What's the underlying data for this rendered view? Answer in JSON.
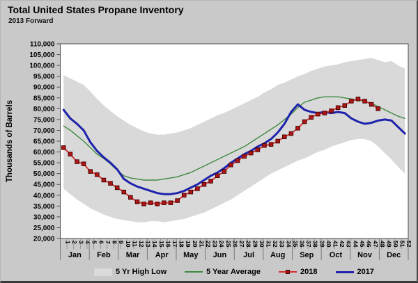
{
  "title": "Total United States Propane Inventory",
  "subtitle": "2013 Forward",
  "y_axis": {
    "label": "Thousands of Barrels",
    "min": 20000,
    "max": 110000,
    "step": 5000
  },
  "x_axis": {
    "week_min": 1,
    "week_max": 52,
    "months": [
      "Jan",
      "Feb",
      "Mar",
      "Apr",
      "May",
      "Jun",
      "Jul",
      "Aug",
      "Sep",
      "Oct",
      "Nov",
      "Dec"
    ]
  },
  "legend": [
    {
      "label": "5 Yr High Low",
      "type": "band",
      "color": "#dadada"
    },
    {
      "label": "5 Year Average",
      "type": "line",
      "color": "#3e8a40"
    },
    {
      "label": "2018",
      "type": "line-marker",
      "color": "#d92b2b",
      "marker_color": "#b01515"
    },
    {
      "label": "2017",
      "type": "line",
      "color": "#1e22aa"
    }
  ],
  "colors": {
    "background": "#c9c9c9",
    "plot_background": "#ffffff",
    "band_fill": "#d9d9d9",
    "avg_line": "#3e8a40",
    "line_2018": "#d92b2b",
    "marker_2018": "#b01515",
    "marker_edge_2018": "#400000",
    "line_2017": "#1e22aa",
    "axis": "#4d4d4d",
    "text": "#000000"
  },
  "chart_data": {
    "type": "line",
    "title": "Total United States Propane Inventory",
    "subtitle": "2013 Forward",
    "xlabel": "",
    "ylabel": "Thousands of Barrels",
    "ylim": [
      20000,
      110000
    ],
    "x": [
      1,
      2,
      3,
      4,
      5,
      6,
      7,
      8,
      9,
      10,
      11,
      12,
      13,
      14,
      15,
      16,
      17,
      18,
      19,
      20,
      21,
      22,
      23,
      24,
      25,
      26,
      27,
      28,
      29,
      30,
      31,
      32,
      33,
      34,
      35,
      36,
      37,
      38,
      39,
      40,
      41,
      42,
      43,
      44,
      45,
      46,
      47,
      48,
      49,
      50,
      51,
      52
    ],
    "series": [
      {
        "name": "5 Yr High (band top)",
        "values": [
          95500,
          94000,
          92500,
          91000,
          88000,
          84500,
          81500,
          79000,
          76500,
          74500,
          72500,
          71000,
          69500,
          68500,
          68000,
          68000,
          68500,
          69000,
          70000,
          71000,
          72500,
          74000,
          75500,
          77000,
          78000,
          79500,
          81000,
          82500,
          84000,
          85500,
          87500,
          89000,
          91000,
          92000,
          93500,
          95000,
          96000,
          97500,
          98500,
          99500,
          100000,
          100500,
          101500,
          102000,
          102500,
          103000,
          103500,
          102500,
          101500,
          102000,
          100000,
          98500
        ]
      },
      {
        "name": "5 Yr Low (band bottom)",
        "values": [
          43000,
          40500,
          38000,
          36000,
          34000,
          32500,
          31000,
          30000,
          29000,
          28500,
          28000,
          27500,
          27500,
          28000,
          28000,
          27500,
          28000,
          28500,
          29000,
          30000,
          31000,
          32000,
          33500,
          35000,
          36500,
          38000,
          40000,
          42000,
          44000,
          46000,
          48000,
          50000,
          51500,
          53000,
          54500,
          56000,
          57000,
          58500,
          60000,
          61000,
          62500,
          63500,
          64500,
          65500,
          66000,
          66000,
          65000,
          62500,
          59500,
          56500,
          53000,
          50000
        ]
      },
      {
        "name": "5 Year Average",
        "values": [
          72000,
          70000,
          67500,
          65000,
          62000,
          59000,
          57000,
          54500,
          51500,
          49000,
          48000,
          47500,
          47000,
          47000,
          47000,
          47500,
          48000,
          48500,
          49500,
          50500,
          52000,
          53500,
          55000,
          56500,
          58000,
          59500,
          61000,
          62500,
          64500,
          66500,
          68500,
          70500,
          72500,
          75000,
          77500,
          80500,
          83000,
          84000,
          85000,
          85500,
          85500,
          85500,
          85000,
          84500,
          84000,
          83500,
          82500,
          81000,
          79500,
          78000,
          76500,
          75500
        ]
      },
      {
        "name": "2018",
        "values": [
          62000,
          59000,
          55500,
          54500,
          51000,
          49500,
          47000,
          45500,
          43500,
          41500,
          39000,
          37000,
          36000,
          36500,
          36000,
          36500,
          36500,
          37500,
          40000,
          41500,
          43000,
          45000,
          46500,
          49000,
          51000,
          54000,
          56000,
          58000,
          59500,
          61000,
          63000,
          63500,
          65000,
          67000,
          68500,
          71000,
          74000,
          76000,
          77500,
          78000,
          79000,
          80500,
          81500,
          83500,
          84500,
          83500,
          82000,
          80000,
          null,
          null,
          null,
          null
        ]
      },
      {
        "name": "2017",
        "values": [
          79500,
          75500,
          73000,
          70000,
          64500,
          60500,
          57500,
          55000,
          52000,
          47500,
          45500,
          44000,
          43000,
          42000,
          41000,
          40500,
          40500,
          41000,
          42000,
          43500,
          45000,
          47000,
          49000,
          50500,
          52500,
          55000,
          57000,
          59000,
          60500,
          62500,
          64000,
          66000,
          69000,
          73000,
          78500,
          82000,
          79500,
          78500,
          78000,
          78500,
          78000,
          78500,
          78000,
          75500,
          74000,
          73000,
          73500,
          74500,
          75000,
          74500,
          71500,
          68500
        ]
      }
    ],
    "legend_position": "bottom",
    "grid": false
  }
}
